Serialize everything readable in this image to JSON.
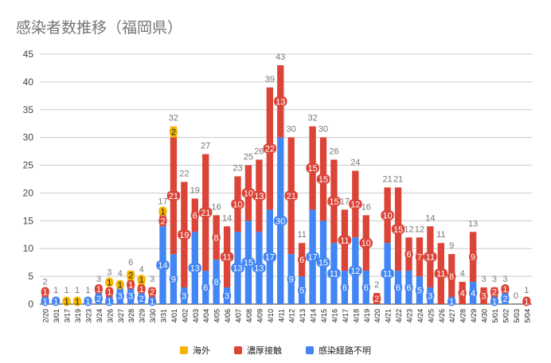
{
  "chart_data": {
    "type": "bar",
    "stacked": true,
    "title": "感染者数推移（福岡県）",
    "xlabel": "",
    "ylabel": "",
    "ylim": [
      0,
      45
    ],
    "yticks": [
      0,
      5,
      10,
      15,
      20,
      25,
      30,
      35,
      40,
      45
    ],
    "grid": true,
    "legend_position": "bottom",
    "categories": [
      "2/20",
      "3/01",
      "3/17",
      "3/19",
      "3/23",
      "3/24",
      "3/26",
      "3/27",
      "3/28",
      "3/29",
      "3/30",
      "3/31",
      "4/01",
      "4/02",
      "4/03",
      "4/04",
      "4/05",
      "4/06",
      "4/07",
      "4/08",
      "4/09",
      "4/10",
      "4/11",
      "4/12",
      "4/13",
      "4/14",
      "4/15",
      "4/16",
      "4/17",
      "4/18",
      "4/19",
      "4/20",
      "4/21",
      "4/22",
      "4/23",
      "4/24",
      "4/25",
      "4/26",
      "4/27",
      "4/28",
      "4/29",
      "4/30",
      "5/01",
      "5/02",
      "5/03",
      "5/04"
    ],
    "series": [
      {
        "name": "感染経路不明",
        "color": "#4285f4",
        "values": [
          1,
          1,
          0,
          0,
          1,
          2,
          1,
          3,
          3,
          2,
          1,
          14,
          9,
          3,
          13,
          6,
          8,
          3,
          13,
          15,
          13,
          17,
          30,
          9,
          5,
          17,
          15,
          11,
          6,
          12,
          6,
          0,
          11,
          6,
          6,
          5,
          3,
          0,
          1,
          0,
          4,
          0,
          1,
          2,
          0,
          0
        ]
      },
      {
        "name": "濃厚接触",
        "color": "#db4437",
        "values": [
          1,
          0,
          0,
          0,
          0,
          1,
          1,
          0,
          1,
          1,
          2,
          2,
          21,
          19,
          6,
          21,
          8,
          11,
          10,
          10,
          13,
          22,
          13,
          21,
          6,
          15,
          15,
          15,
          11,
          12,
          10,
          2,
          10,
          15,
          6,
          7,
          11,
          11,
          8,
          4,
          9,
          3,
          2,
          1,
          0,
          1
        ]
      },
      {
        "name": "海外",
        "color": "#f4b400",
        "values": [
          0,
          0,
          1,
          1,
          0,
          0,
          1,
          1,
          2,
          1,
          0,
          1,
          2,
          0,
          0,
          0,
          0,
          0,
          0,
          0,
          0,
          0,
          0,
          0,
          0,
          0,
          0,
          0,
          0,
          0,
          0,
          0,
          0,
          0,
          0,
          0,
          0,
          0,
          0,
          0,
          0,
          0,
          0,
          0,
          0,
          0
        ]
      }
    ],
    "legend_order": [
      "海外",
      "濃厚接触",
      "感染経路不明"
    ]
  }
}
